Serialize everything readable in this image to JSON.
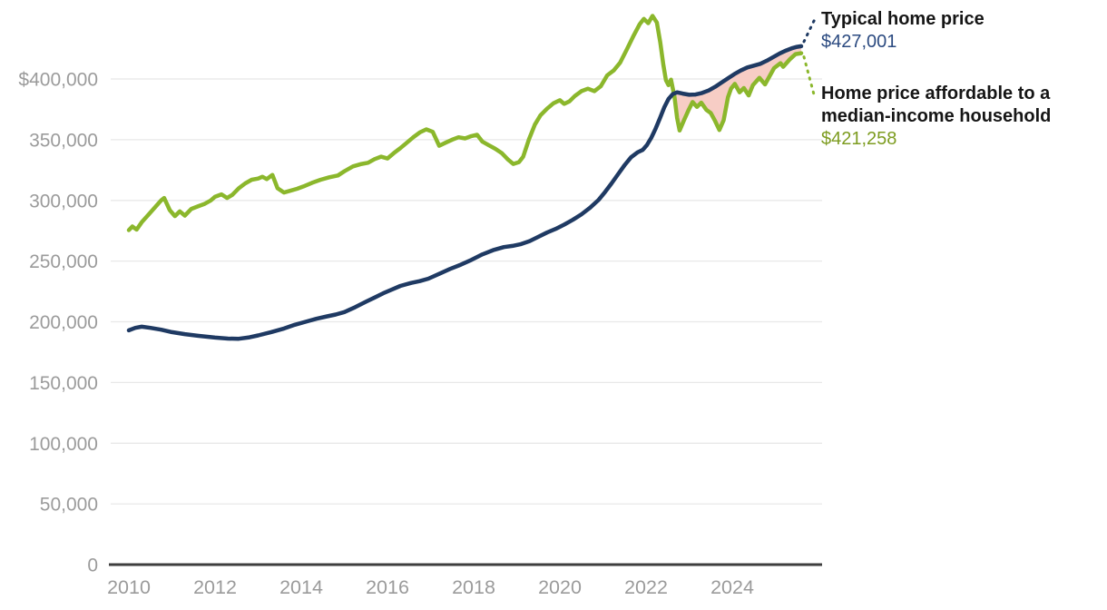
{
  "page": {
    "background": "#ffffff"
  },
  "annotations": {
    "typical": {
      "title": "Typical home price",
      "value": "$427,001"
    },
    "affordable": {
      "title": "Home price affordable to a median-income household",
      "value": "$421,258"
    }
  },
  "colors": {
    "typical_line": "#1f3a63",
    "affordable_line": "#8bb72c",
    "shortfall_fill": "#f7cdc5",
    "gridline": "#e8e8e8",
    "axis_line": "#3e3e3e",
    "tick_text": "#9b9b9b",
    "typical_value_text": "#2b4a80",
    "affordable_value_text": "#7d9c20"
  },
  "chart_data": {
    "type": "line",
    "title": "",
    "legend_position": "right-annotations",
    "x_axis": {
      "ticks": [
        {
          "label": "2010",
          "value": 2010
        },
        {
          "label": "2012",
          "value": 2012
        },
        {
          "label": "2014",
          "value": 2014
        },
        {
          "label": "2016",
          "value": 2016
        },
        {
          "label": "2018",
          "value": 2018
        },
        {
          "label": "2020",
          "value": 2020
        },
        {
          "label": "2022",
          "value": 2022
        },
        {
          "label": "2024",
          "value": 2024
        }
      ],
      "range_years": [
        2010,
        2025.6
      ],
      "gridlines": false
    },
    "y_axis": {
      "ticks": [
        {
          "label": "$400,000",
          "value": 400000
        },
        {
          "label": "350,000",
          "value": 350000
        },
        {
          "label": "300,000",
          "value": 300000
        },
        {
          "label": "250,000",
          "value": 250000
        },
        {
          "label": "200,000",
          "value": 200000
        },
        {
          "label": "150,000",
          "value": 150000
        },
        {
          "label": "100,000",
          "value": 100000
        },
        {
          "label": "50,000",
          "value": 50000
        },
        {
          "label": "0",
          "value": 0
        }
      ],
      "range": [
        0,
        452000
      ],
      "gridlines": true
    },
    "shortfall_fill": {
      "color": "#f7cdc5",
      "description": "shaded region where typical home price exceeds affordable home price (mid-2022 onward)"
    },
    "series": [
      {
        "name": "Typical home price",
        "color": "#1f3a63",
        "end_value": 427001,
        "end_label": "$427,001",
        "points": [
          [
            2010.0,
            193000
          ],
          [
            2010.15,
            195000
          ],
          [
            2010.3,
            196000
          ],
          [
            2010.5,
            195000
          ],
          [
            2010.75,
            193500
          ],
          [
            2011.0,
            191500
          ],
          [
            2011.3,
            189800
          ],
          [
            2011.6,
            188500
          ],
          [
            2012.0,
            187000
          ],
          [
            2012.3,
            186200
          ],
          [
            2012.55,
            186000
          ],
          [
            2012.8,
            187200
          ],
          [
            2013.0,
            188800
          ],
          [
            2013.3,
            191500
          ],
          [
            2013.6,
            194500
          ],
          [
            2013.85,
            197500
          ],
          [
            2014.1,
            200000
          ],
          [
            2014.35,
            202500
          ],
          [
            2014.6,
            204500
          ],
          [
            2014.8,
            206000
          ],
          [
            2015.0,
            208000
          ],
          [
            2015.25,
            212000
          ],
          [
            2015.5,
            216500
          ],
          [
            2015.7,
            220000
          ],
          [
            2015.9,
            223500
          ],
          [
            2016.1,
            226500
          ],
          [
            2016.3,
            229500
          ],
          [
            2016.55,
            232000
          ],
          [
            2016.75,
            233500
          ],
          [
            2016.95,
            235500
          ],
          [
            2017.2,
            239500
          ],
          [
            2017.45,
            243500
          ],
          [
            2017.7,
            247000
          ],
          [
            2017.95,
            251000
          ],
          [
            2018.2,
            255500
          ],
          [
            2018.45,
            259000
          ],
          [
            2018.7,
            261500
          ],
          [
            2018.9,
            262500
          ],
          [
            2019.1,
            264000
          ],
          [
            2019.3,
            266500
          ],
          [
            2019.5,
            270000
          ],
          [
            2019.7,
            273500
          ],
          [
            2019.9,
            276500
          ],
          [
            2020.1,
            280000
          ],
          [
            2020.3,
            284000
          ],
          [
            2020.5,
            288500
          ],
          [
            2020.7,
            294000
          ],
          [
            2020.9,
            300500
          ],
          [
            2021.05,
            307000
          ],
          [
            2021.2,
            314000
          ],
          [
            2021.35,
            321500
          ],
          [
            2021.5,
            329000
          ],
          [
            2021.65,
            335500
          ],
          [
            2021.8,
            339500
          ],
          [
            2021.92,
            341500
          ],
          [
            2022.02,
            345500
          ],
          [
            2022.12,
            351500
          ],
          [
            2022.22,
            359000
          ],
          [
            2022.32,
            367500
          ],
          [
            2022.42,
            376500
          ],
          [
            2022.52,
            383500
          ],
          [
            2022.62,
            387500
          ],
          [
            2022.72,
            389000
          ],
          [
            2022.85,
            388000
          ],
          [
            2023.0,
            387000
          ],
          [
            2023.15,
            387200
          ],
          [
            2023.3,
            388500
          ],
          [
            2023.45,
            390500
          ],
          [
            2023.6,
            393500
          ],
          [
            2023.75,
            397000
          ],
          [
            2023.9,
            400500
          ],
          [
            2024.05,
            404000
          ],
          [
            2024.2,
            407000
          ],
          [
            2024.35,
            409500
          ],
          [
            2024.5,
            411000
          ],
          [
            2024.65,
            412500
          ],
          [
            2024.8,
            415000
          ],
          [
            2024.95,
            418000
          ],
          [
            2025.1,
            421000
          ],
          [
            2025.25,
            423500
          ],
          [
            2025.4,
            425500
          ],
          [
            2025.5,
            426500
          ],
          [
            2025.6,
            427001
          ]
        ]
      },
      {
        "name": "Home price affordable to a median-income household",
        "color": "#8bb72c",
        "end_value": 421258,
        "end_label": "$421,258",
        "points": [
          [
            2010.0,
            275500
          ],
          [
            2010.08,
            278500
          ],
          [
            2010.18,
            276000
          ],
          [
            2010.3,
            282000
          ],
          [
            2010.45,
            288000
          ],
          [
            2010.6,
            294000
          ],
          [
            2010.75,
            300000
          ],
          [
            2010.82,
            302000
          ],
          [
            2010.95,
            292000
          ],
          [
            2011.07,
            287000
          ],
          [
            2011.18,
            291000
          ],
          [
            2011.3,
            287500
          ],
          [
            2011.45,
            293000
          ],
          [
            2011.6,
            295000
          ],
          [
            2011.75,
            297000
          ],
          [
            2011.9,
            300000
          ],
          [
            2012.0,
            303000
          ],
          [
            2012.15,
            305000
          ],
          [
            2012.28,
            302000
          ],
          [
            2012.4,
            304500
          ],
          [
            2012.55,
            310000
          ],
          [
            2012.7,
            314000
          ],
          [
            2012.85,
            317000
          ],
          [
            2013.0,
            318000
          ],
          [
            2013.1,
            319500
          ],
          [
            2013.2,
            317500
          ],
          [
            2013.33,
            321000
          ],
          [
            2013.45,
            310000
          ],
          [
            2013.6,
            306500
          ],
          [
            2013.75,
            308000
          ],
          [
            2013.9,
            309500
          ],
          [
            2014.05,
            311500
          ],
          [
            2014.25,
            314500
          ],
          [
            2014.45,
            317000
          ],
          [
            2014.65,
            319000
          ],
          [
            2014.85,
            320500
          ],
          [
            2015.0,
            324000
          ],
          [
            2015.2,
            328000
          ],
          [
            2015.4,
            330000
          ],
          [
            2015.55,
            331000
          ],
          [
            2015.7,
            334000
          ],
          [
            2015.85,
            336000
          ],
          [
            2016.0,
            334500
          ],
          [
            2016.15,
            339000
          ],
          [
            2016.3,
            343000
          ],
          [
            2016.45,
            347500
          ],
          [
            2016.6,
            352000
          ],
          [
            2016.75,
            356000
          ],
          [
            2016.9,
            358500
          ],
          [
            2017.05,
            356500
          ],
          [
            2017.2,
            345000
          ],
          [
            2017.35,
            347500
          ],
          [
            2017.5,
            350000
          ],
          [
            2017.65,
            352000
          ],
          [
            2017.8,
            351000
          ],
          [
            2017.95,
            353000
          ],
          [
            2018.08,
            354000
          ],
          [
            2018.2,
            348500
          ],
          [
            2018.35,
            345500
          ],
          [
            2018.5,
            342500
          ],
          [
            2018.65,
            339000
          ],
          [
            2018.8,
            333500
          ],
          [
            2018.92,
            330000
          ],
          [
            2019.05,
            331500
          ],
          [
            2019.15,
            336000
          ],
          [
            2019.28,
            350000
          ],
          [
            2019.42,
            362500
          ],
          [
            2019.55,
            370000
          ],
          [
            2019.7,
            375500
          ],
          [
            2019.85,
            380000
          ],
          [
            2020.0,
            382500
          ],
          [
            2020.1,
            379500
          ],
          [
            2020.22,
            381500
          ],
          [
            2020.35,
            386000
          ],
          [
            2020.5,
            390000
          ],
          [
            2020.65,
            392000
          ],
          [
            2020.8,
            390000
          ],
          [
            2020.95,
            394000
          ],
          [
            2021.1,
            403000
          ],
          [
            2021.25,
            407000
          ],
          [
            2021.4,
            413500
          ],
          [
            2021.55,
            424000
          ],
          [
            2021.7,
            435000
          ],
          [
            2021.85,
            445000
          ],
          [
            2021.95,
            449500
          ],
          [
            2022.05,
            446000
          ],
          [
            2022.15,
            452000
          ],
          [
            2022.25,
            446500
          ],
          [
            2022.33,
            430000
          ],
          [
            2022.4,
            412000
          ],
          [
            2022.46,
            399000
          ],
          [
            2022.52,
            395000
          ],
          [
            2022.58,
            399500
          ],
          [
            2022.66,
            385000
          ],
          [
            2022.72,
            368000
          ],
          [
            2022.78,
            357500
          ],
          [
            2022.88,
            366000
          ],
          [
            2022.98,
            374000
          ],
          [
            2023.08,
            381000
          ],
          [
            2023.18,
            377000
          ],
          [
            2023.28,
            380500
          ],
          [
            2023.4,
            374500
          ],
          [
            2023.5,
            372000
          ],
          [
            2023.6,
            365500
          ],
          [
            2023.7,
            358000
          ],
          [
            2023.8,
            366000
          ],
          [
            2023.9,
            385000
          ],
          [
            2023.97,
            392000
          ],
          [
            2024.06,
            396000
          ],
          [
            2024.17,
            389000
          ],
          [
            2024.27,
            392500
          ],
          [
            2024.38,
            386500
          ],
          [
            2024.48,
            395000
          ],
          [
            2024.63,
            401000
          ],
          [
            2024.76,
            395500
          ],
          [
            2024.97,
            409000
          ],
          [
            2025.12,
            413000
          ],
          [
            2025.18,
            410000
          ],
          [
            2025.33,
            416000
          ],
          [
            2025.47,
            420500
          ],
          [
            2025.6,
            421258
          ]
        ]
      }
    ]
  }
}
